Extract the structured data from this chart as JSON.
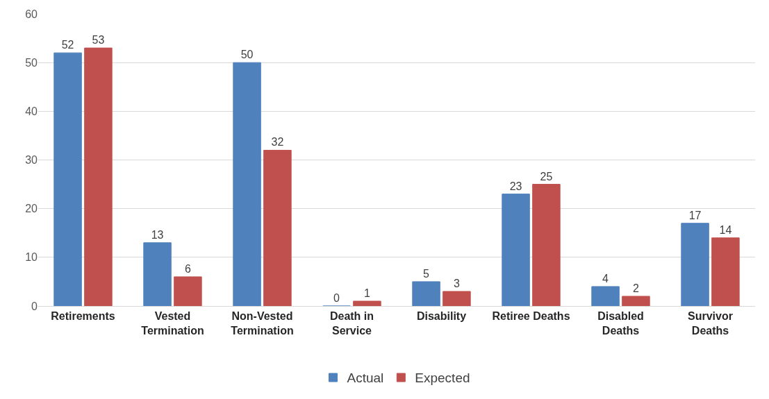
{
  "chart_data": {
    "type": "bar",
    "categories": [
      "Retirements",
      "Vested\nTermination",
      "Non-Vested\nTermination",
      "Death in\nService",
      "Disability",
      "Retiree Deaths",
      "Disabled\nDeaths",
      "Survivor\nDeaths"
    ],
    "series": [
      {
        "name": "Actual",
        "color": "#4f81bd",
        "values": [
          52,
          13,
          50,
          0,
          5,
          23,
          4,
          17
        ]
      },
      {
        "name": "Expected",
        "color": "#c0504d",
        "values": [
          53,
          6,
          32,
          1,
          3,
          25,
          2,
          14
        ]
      }
    ],
    "ylim": [
      0,
      60
    ],
    "yticks": [
      0,
      10,
      20,
      30,
      40,
      50,
      60
    ],
    "grid": "y",
    "legend": "bottom",
    "data_labels": true
  }
}
